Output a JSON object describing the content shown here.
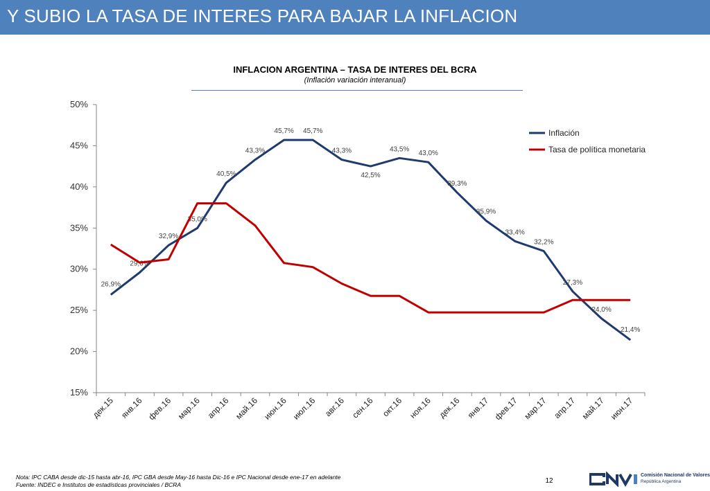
{
  "header": {
    "title": "Y SUBIO LA TASA DE INTERES PARA BAJAR LA INFLACION"
  },
  "chart_data": {
    "type": "line",
    "title": "INFLACION ARGENTINA – TASA DE INTERES DEL BCRA",
    "subtitle": "(Inflación variación interanual)",
    "categories": [
      "дек.15",
      "янв.16",
      "фев.16",
      "мар.16",
      "апр.16",
      "май.16",
      "июн.16",
      "июл.16",
      "авг.16",
      "сен.16",
      "окт.16",
      "ноя.16",
      "дек.16",
      "янв.17",
      "фев.17",
      "мар.17",
      "апр.17",
      "май.17",
      "июн.17"
    ],
    "series": [
      {
        "name": "Inflación",
        "color": "#1f3a6e",
        "values": [
          26.9,
          29.6,
          32.9,
          35.0,
          40.5,
          43.3,
          45.7,
          45.7,
          43.3,
          42.5,
          43.5,
          43.0,
          39.3,
          35.9,
          33.4,
          32.2,
          27.3,
          24.0,
          21.4
        ],
        "labels": [
          "26,9%",
          "29,6%",
          "32,9%",
          "35,0%",
          "40,5%",
          "43,3%",
          "45,7%",
          "45,7%",
          "43,3%",
          "42,5%",
          "43,5%",
          "43,0%",
          "39,3%",
          "35,9%",
          "33,4%",
          "32,2%",
          "27,3%",
          "24,0%",
          "21,4%"
        ]
      },
      {
        "name": "Tasa de política monetaria",
        "color": "#c00000",
        "values": [
          33.0,
          30.8,
          31.2,
          38.0,
          38.0,
          35.3,
          30.75,
          30.25,
          28.25,
          26.75,
          26.75,
          24.75,
          24.75,
          24.75,
          24.75,
          24.75,
          26.25,
          26.25,
          26.25
        ]
      }
    ],
    "ylim": [
      15,
      50
    ],
    "yticks": [
      "15%",
      "20%",
      "25%",
      "30%",
      "35%",
      "40%",
      "45%",
      "50%"
    ],
    "ytick_values": [
      15,
      20,
      25,
      30,
      35,
      40,
      45,
      50
    ],
    "xlabel": "",
    "ylabel": "",
    "grid": false,
    "legend": "top-right"
  },
  "footer": {
    "note": "Nota: IPC CABA desde dic-15 hasta abr-16, IPC GBA desde May-16 hasta Dic-16  e IPC Nacional desde ene-17 en adelante",
    "source": "Fuente: INDEC e Institutos de estadísticas provinciales / BCRA",
    "page_number": "12",
    "logo_text": "CNV",
    "logo_name": "Comisión Nacional de Valores",
    "logo_country": "República Argentina"
  }
}
